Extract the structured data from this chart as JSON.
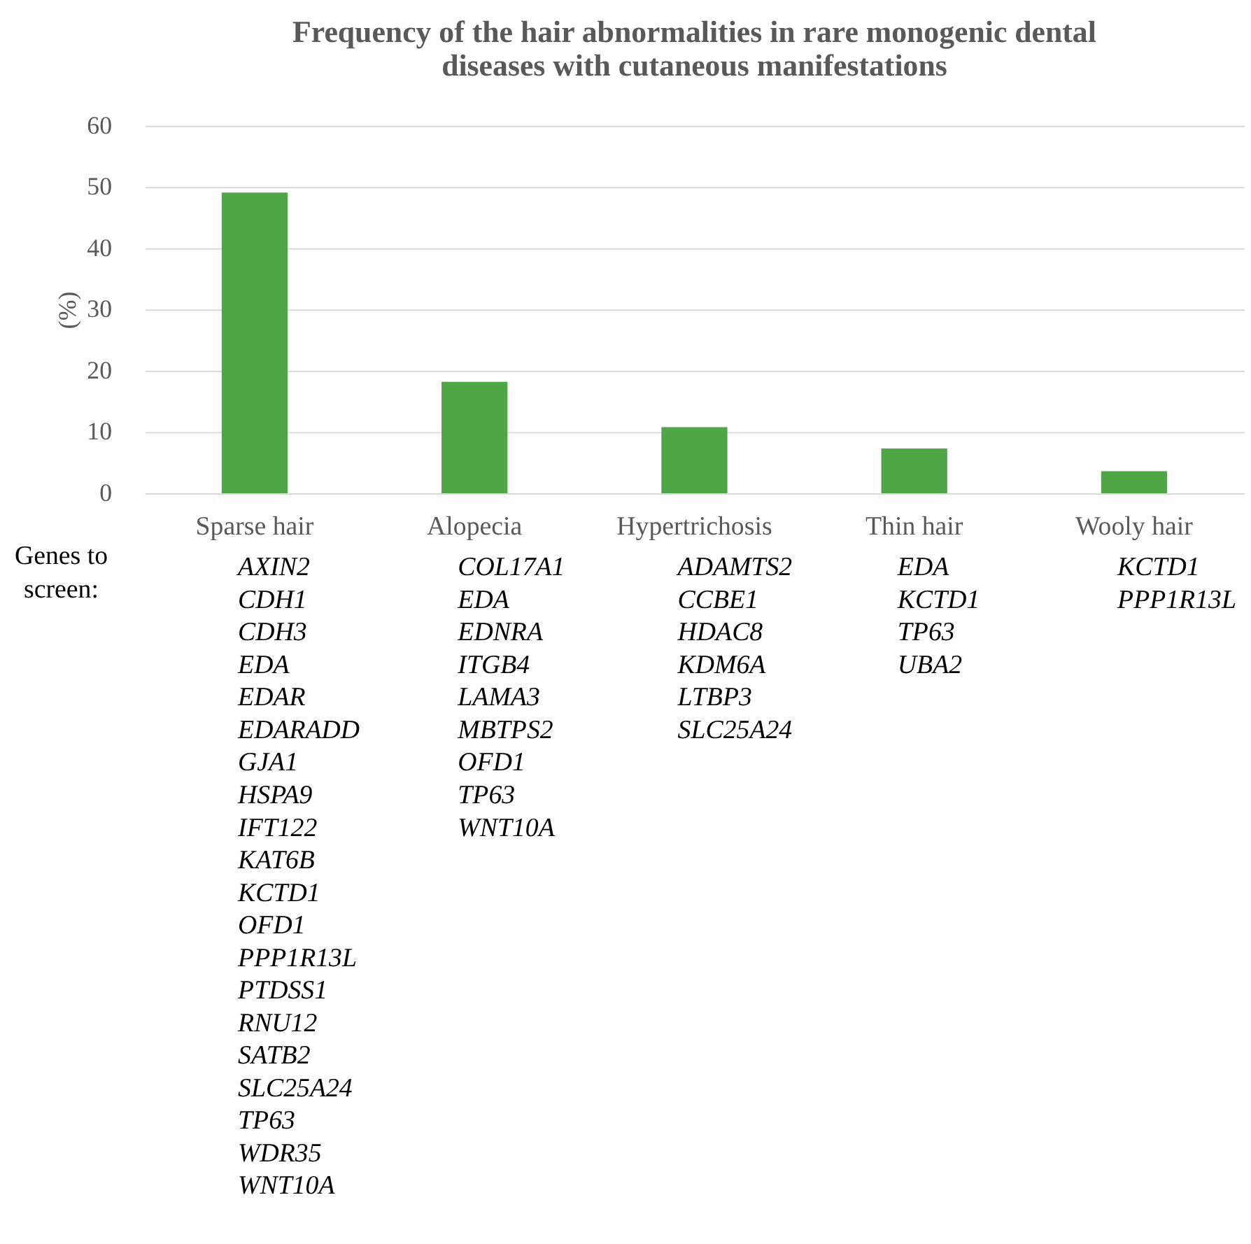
{
  "chart_data": {
    "type": "bar",
    "title": [
      "Frequency of the hair abnormalities in rare monogenic dental",
      "diseases with cutaneous manifestations"
    ],
    "ylabel": "(%)",
    "categories": [
      "Sparse hair",
      "Alopecia",
      "Hypertrichosis",
      "Thin hair",
      "Wooly hair"
    ],
    "values": [
      49.1,
      18.2,
      10.8,
      7.3,
      3.6
    ],
    "color": "#4ea646",
    "ylim": [
      0,
      60
    ],
    "yticks": [
      0,
      10,
      20,
      30,
      40,
      50,
      60
    ],
    "grid": "y",
    "legend": false,
    "annotations": [
      "Genes to screen:",
      "AXIN2\nCDH1\nCDH3\nEDA\nEDAR\nEDARADD\nGJA1\nHSPA9\nIFT122\nKAT6B\nKCTD1\nOFD1\nPPP1R13L\nPTDSS1\nRNU12\nSATB2\nSLC25A24\nTP63\nWDR35\nWNT10A",
      "COL17A1\nEDA\nEDNRA\nITGB4\nLAMA3\nMBTPS2\nOFD1\nTP63\nWNT10A",
      "ADAMTS2\nCCBE1\nHDAC8\nKDM6A\nLTBP3\nSLC25A24",
      "EDA\nKCTD1\nTP63\nUBA2",
      "KCTD1\nPPP1R13L"
    ]
  }
}
